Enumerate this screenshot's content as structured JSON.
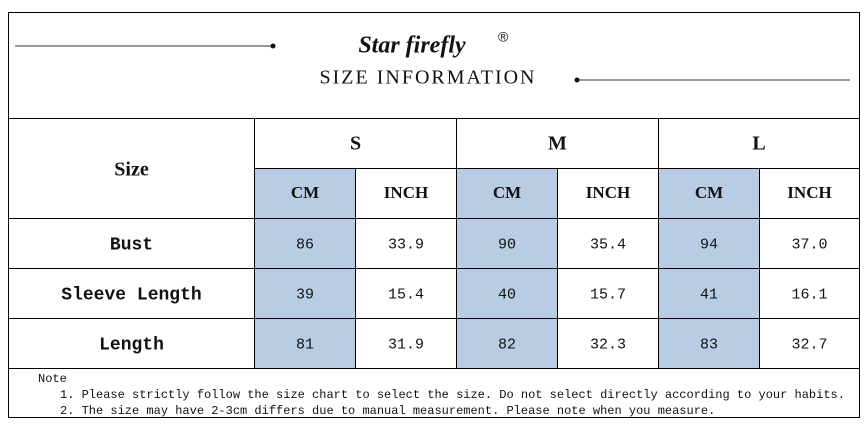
{
  "header": {
    "brand": "Star firefly",
    "registered": "®",
    "subtitle": "SIZE INFORMATION"
  },
  "table": {
    "corner": "Size",
    "sizes": [
      {
        "name": "S",
        "units": [
          "CM",
          "INCH"
        ]
      },
      {
        "name": "M",
        "units": [
          "CM",
          "INCH"
        ]
      },
      {
        "name": "L",
        "units": [
          "CM",
          "INCH"
        ]
      }
    ],
    "rows": [
      {
        "label": "Bust",
        "values": [
          "86",
          "33.9",
          "90",
          "35.4",
          "94",
          "37.0"
        ]
      },
      {
        "label": "Sleeve Length",
        "values": [
          "39",
          "15.4",
          "40",
          "15.7",
          "41",
          "16.1"
        ]
      },
      {
        "label": "Length",
        "values": [
          "81",
          "31.9",
          "82",
          "32.3",
          "83",
          "32.7"
        ]
      }
    ]
  },
  "note": {
    "title": "Note",
    "items": [
      "1. Please strictly follow the size chart to select the size. Do not select directly according to your habits.",
      "2. The size may have 2-3cm differs due to manual measurement. Please note when you measure."
    ]
  }
}
